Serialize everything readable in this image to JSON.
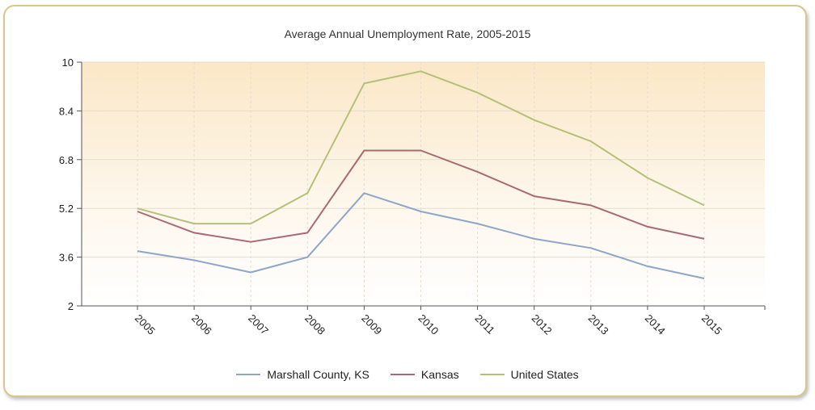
{
  "chart_data": {
    "type": "line",
    "title": "Average Annual Unemployment Rate, 2005-2015",
    "xlabel": "",
    "ylabel": "",
    "categories": [
      "2005",
      "2006",
      "2007",
      "2008",
      "2009",
      "2010",
      "2011",
      "2012",
      "2013",
      "2014",
      "2015"
    ],
    "ylim": [
      2,
      10
    ],
    "yticks": [
      "10",
      "8.4",
      "6.8",
      "5.2",
      "3.6",
      "2"
    ],
    "grid": true,
    "legend_position": "bottom",
    "series": [
      {
        "name": "Marshall County, KS",
        "color": "#8fa6c8",
        "values": [
          3.8,
          3.5,
          3.1,
          3.6,
          5.7,
          5.1,
          4.7,
          4.2,
          3.9,
          3.3,
          2.9
        ]
      },
      {
        "name": "Kansas",
        "color": "#a86a73",
        "values": [
          5.1,
          4.4,
          4.1,
          4.4,
          7.1,
          7.1,
          6.4,
          5.6,
          5.3,
          4.6,
          4.2
        ]
      },
      {
        "name": "United States",
        "color": "#b5c07a",
        "values": [
          5.2,
          4.7,
          4.7,
          5.7,
          9.3,
          9.7,
          9.0,
          8.1,
          7.4,
          6.2,
          5.3
        ]
      }
    ]
  }
}
